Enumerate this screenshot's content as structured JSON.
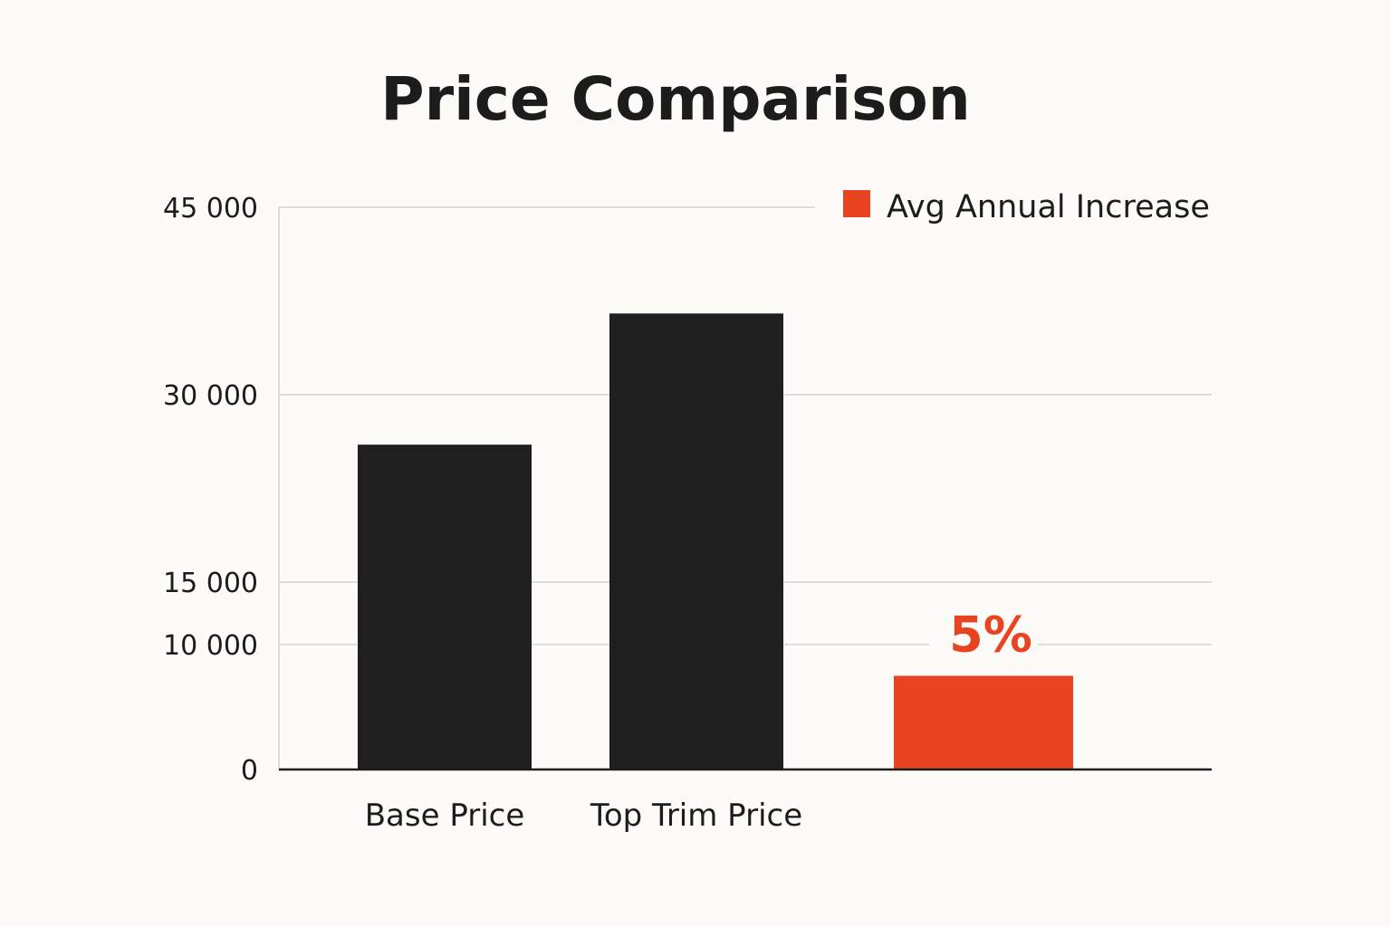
{
  "chart_data": {
    "type": "bar",
    "title": "Price Comparison",
    "xlabel": "",
    "ylabel": "",
    "ylim": [
      0,
      45000
    ],
    "y_ticks": [
      {
        "value": 0,
        "label": "0"
      },
      {
        "value": 10000,
        "label": "10 000"
      },
      {
        "value": 15000,
        "label": "15 000"
      },
      {
        "value": 30000,
        "label": "30 000"
      },
      {
        "value": 45000,
        "label": "45 000"
      }
    ],
    "categories": [
      "Base Price",
      "Top Trim Price",
      ""
    ],
    "values": [
      26000,
      36500,
      7500
    ],
    "bar_colors": [
      "#1f1f1f",
      "#1f1f1f",
      "#e84422"
    ],
    "data_labels": [
      "",
      "",
      "5%"
    ],
    "legend": {
      "placement": "top-right",
      "entries": [
        {
          "label": "Avg Annual Increase",
          "color": "#e84422"
        }
      ]
    },
    "grid": true
  },
  "colors": {
    "background": "#fcfbf7",
    "text": "#1c1c1c",
    "grid": "#dddddd",
    "axis": "#1c1c1c",
    "accent": "#e84422"
  }
}
